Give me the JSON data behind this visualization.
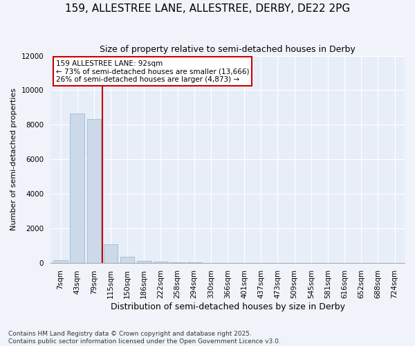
{
  "title_line1": "159, ALLESTREE LANE, ALLESTREE, DERBY, DE22 2PG",
  "title_line2": "Size of property relative to semi-detached houses in Derby",
  "xlabel": "Distribution of semi-detached houses by size in Derby",
  "ylabel": "Number of semi-detached properties",
  "categories": [
    "7sqm",
    "43sqm",
    "79sqm",
    "115sqm",
    "150sqm",
    "186sqm",
    "222sqm",
    "258sqm",
    "294sqm",
    "330sqm",
    "366sqm",
    "401sqm",
    "437sqm",
    "473sqm",
    "509sqm",
    "545sqm",
    "581sqm",
    "616sqm",
    "652sqm",
    "688sqm",
    "724sqm"
  ],
  "values": [
    130,
    8650,
    8350,
    1050,
    330,
    110,
    55,
    30,
    10,
    0,
    0,
    0,
    0,
    0,
    0,
    0,
    0,
    0,
    0,
    0,
    0
  ],
  "bar_color": "#ccd9e8",
  "bar_edge_color": "#99bbdd",
  "property_line_x": 2.5,
  "annotation_text_line1": "159 ALLESTREE LANE: 92sqm",
  "annotation_text_line2": "← 73% of semi-detached houses are smaller (13,666)",
  "annotation_text_line3": "26% of semi-detached houses are larger (4,873) →",
  "ylim": [
    0,
    12000
  ],
  "yticks": [
    0,
    2000,
    4000,
    6000,
    8000,
    10000,
    12000
  ],
  "bg_color": "#f0f4fa",
  "plot_bg_color": "#e8eef8",
  "grid_color": "#ffffff",
  "footer_line1": "Contains HM Land Registry data © Crown copyright and database right 2025.",
  "footer_line2": "Contains public sector information licensed under the Open Government Licence v3.0.",
  "annotation_box_color": "#cc0000",
  "line_color": "#cc0000",
  "title1_fontsize": 11,
  "title2_fontsize": 9,
  "xlabel_fontsize": 9,
  "ylabel_fontsize": 8,
  "tick_fontsize": 7.5,
  "annot_fontsize": 7.5,
  "footer_fontsize": 6.5
}
